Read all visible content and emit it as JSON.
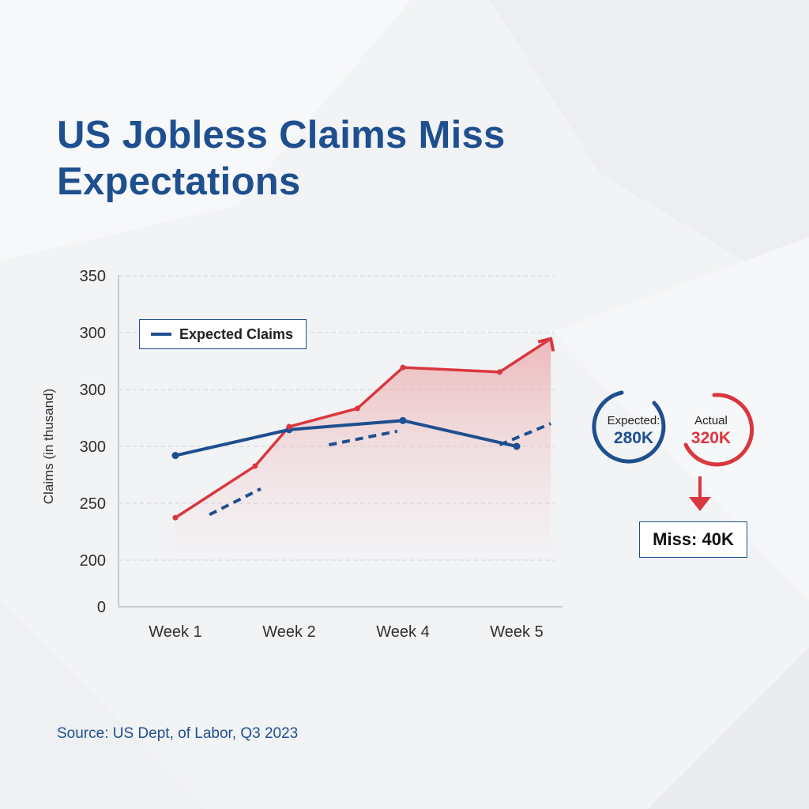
{
  "title": "US Jobless Claims Miss Expectations",
  "source": "Source: US Dept, of Labor, Q3 2023",
  "colors": {
    "expected": "#1e4f8f",
    "actual": "#d9373e"
  },
  "chart_data": {
    "type": "line",
    "title": "US Jobless Claims Miss Expectations",
    "ylabel": "Claims (in thusand)",
    "xlabel": "",
    "categories": [
      "Week 1",
      "Week 2",
      "Week 4",
      "Week 5"
    ],
    "y_tick_labels": [
      "0",
      "200",
      "250",
      "300",
      "300",
      "300",
      "350"
    ],
    "grid": true,
    "legend_position": "top-left",
    "series": [
      {
        "name": "Expected Claims",
        "style": "solid",
        "color": "#1e4f8f",
        "points": [
          [
            1,
            269
          ],
          [
            2,
            286
          ],
          [
            3,
            292
          ],
          [
            4,
            275
          ]
        ]
      },
      {
        "style": "area",
        "color": "#d9373e",
        "points": [
          [
            1,
            228
          ],
          [
            1.7,
            262
          ],
          [
            2,
            288
          ],
          [
            2.6,
            300
          ],
          [
            3,
            327
          ],
          [
            3.85,
            324
          ],
          [
            4.3,
            346
          ]
        ]
      },
      {
        "style": "dashed",
        "color": "#1e4f8f",
        "points": [
          [
            1.3,
            230
          ],
          [
            1.75,
            247
          ],
          [
            2.35,
            276
          ],
          [
            2.95,
            285
          ],
          [
            3.85,
            276
          ],
          [
            4.3,
            290
          ]
        ]
      }
    ]
  },
  "callout": {
    "expected_caption": "Expected:",
    "expected_value": "280K",
    "actual_caption": "Actual",
    "actual_value": "320K",
    "miss_label": "Miss: 40K"
  }
}
